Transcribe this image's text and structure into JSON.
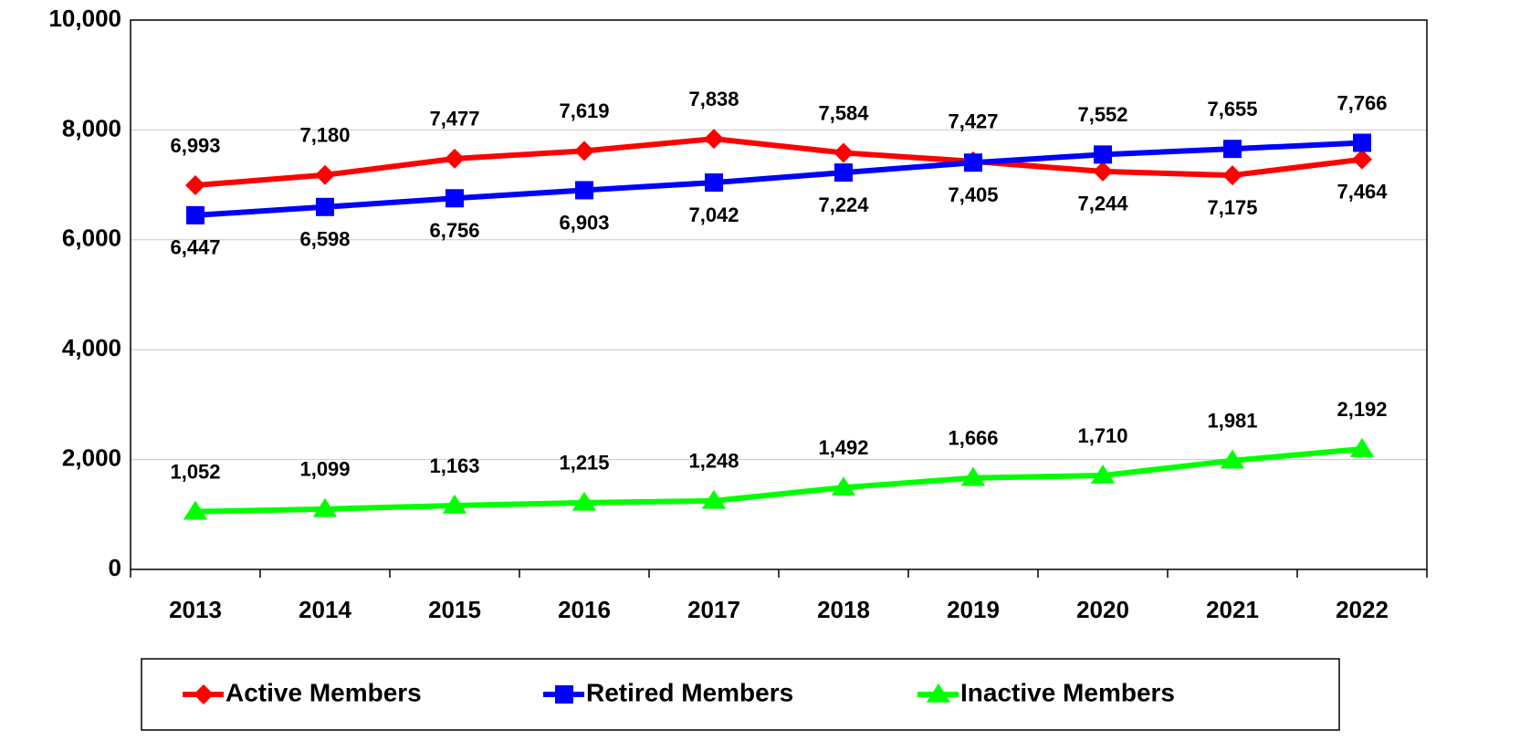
{
  "chart_data": {
    "type": "line",
    "categories": [
      "2013",
      "2014",
      "2015",
      "2016",
      "2017",
      "2018",
      "2019",
      "2020",
      "2021",
      "2022"
    ],
    "series": [
      {
        "name": "Active Members",
        "color": "#ff0000",
        "marker": "diamond",
        "values": [
          6993,
          7180,
          7477,
          7619,
          7838,
          7584,
          7427,
          7244,
          7175,
          7464
        ],
        "value_labels": [
          "6,993",
          "7,180",
          "7,477",
          "7,619",
          "7,838",
          "7,584",
          "7,427",
          "7,244",
          "7,175",
          "7,464"
        ]
      },
      {
        "name": "Retired Members",
        "color": "#0000ff",
        "marker": "square",
        "values": [
          6447,
          6598,
          6756,
          6903,
          7042,
          7224,
          7405,
          7552,
          7655,
          7766
        ],
        "value_labels": [
          "6,447",
          "6,598",
          "6,756",
          "6,903",
          "7,042",
          "7,224",
          "7,405",
          "7,552",
          "7,655",
          "7,766"
        ]
      },
      {
        "name": "Inactive Members",
        "color": "#00ff00",
        "marker": "triangle",
        "values": [
          1052,
          1099,
          1163,
          1215,
          1248,
          1492,
          1666,
          1710,
          1981,
          2192
        ],
        "value_labels": [
          "1,052",
          "1,099",
          "1,163",
          "1,215",
          "1,248",
          "1,492",
          "1,666",
          "1,710",
          "1,981",
          "2,192"
        ]
      }
    ],
    "ylim": [
      0,
      10000
    ],
    "yticks": [
      0,
      {
        "value": 2000,
        "label": "2,000"
      },
      {
        "value": 4000,
        "label": "4,000"
      },
      {
        "value": 6000,
        "label": "6,000"
      },
      {
        "value": 8000,
        "label": "8,000"
      },
      {
        "value": 10000,
        "label": "10,000"
      }
    ],
    "grid": true,
    "legend": "bottom"
  }
}
